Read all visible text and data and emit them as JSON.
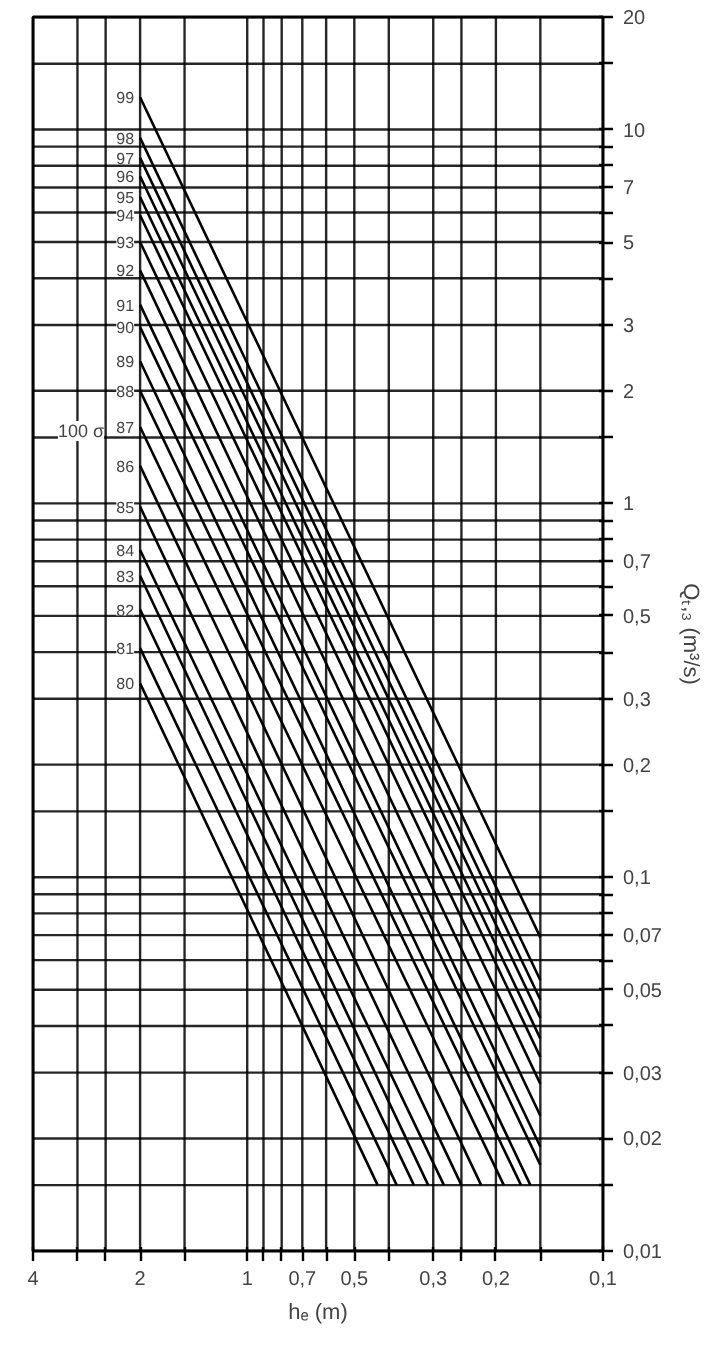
{
  "chart_data": {
    "type": "line",
    "xlabel": "hₑ (m)",
    "ylabel": "Qₜ,₃ (m³/s)",
    "log": "xy",
    "grid": true,
    "xlim": [
      4,
      0.1
    ],
    "ylim": [
      0.01,
      20
    ],
    "xticks": [
      {
        "value": 4,
        "label": "4"
      },
      {
        "value": 3,
        "label": null
      },
      {
        "value": 2.5,
        "label": null
      },
      {
        "value": 2,
        "label": "2"
      },
      {
        "value": 1.5,
        "label": null
      },
      {
        "value": 1,
        "label": "1"
      },
      {
        "value": 0.9,
        "label": null
      },
      {
        "value": 0.8,
        "label": null
      },
      {
        "value": 0.7,
        "label": "0,7"
      },
      {
        "value": 0.6,
        "label": null
      },
      {
        "value": 0.5,
        "label": "0,5"
      },
      {
        "value": 0.4,
        "label": null
      },
      {
        "value": 0.3,
        "label": "0,3"
      },
      {
        "value": 0.25,
        "label": null
      },
      {
        "value": 0.2,
        "label": "0,2"
      },
      {
        "value": 0.15,
        "label": null
      },
      {
        "value": 0.1,
        "label": "0,1"
      }
    ],
    "yticks": [
      {
        "value": 0.01,
        "label": "0,01"
      },
      {
        "value": 0.015,
        "label": null
      },
      {
        "value": 0.02,
        "label": "0,02"
      },
      {
        "value": 0.03,
        "label": "0,03"
      },
      {
        "value": 0.04,
        "label": null
      },
      {
        "value": 0.05,
        "label": "0,05"
      },
      {
        "value": 0.06,
        "label": null
      },
      {
        "value": 0.07,
        "label": "0,07"
      },
      {
        "value": 0.08,
        "label": null
      },
      {
        "value": 0.09,
        "label": null
      },
      {
        "value": 0.1,
        "label": "0,1"
      },
      {
        "value": 0.15,
        "label": null
      },
      {
        "value": 0.2,
        "label": "0,2"
      },
      {
        "value": 0.3,
        "label": "0,3"
      },
      {
        "value": 0.4,
        "label": null
      },
      {
        "value": 0.5,
        "label": "0,5"
      },
      {
        "value": 0.6,
        "label": null
      },
      {
        "value": 0.7,
        "label": "0,7"
      },
      {
        "value": 0.8,
        "label": null
      },
      {
        "value": 0.9,
        "label": null
      },
      {
        "value": 1,
        "label": "1"
      },
      {
        "value": 1.5,
        "label": null
      },
      {
        "value": 2,
        "label": "2"
      },
      {
        "value": 3,
        "label": "3"
      },
      {
        "value": 4,
        "label": null
      },
      {
        "value": 5,
        "label": "5"
      },
      {
        "value": 6,
        "label": null
      },
      {
        "value": 7,
        "label": "7"
      },
      {
        "value": 8,
        "label": null
      },
      {
        "value": 9,
        "label": null
      },
      {
        "value": 10,
        "label": "10"
      },
      {
        "value": 15,
        "label": null
      },
      {
        "value": 20,
        "label": "20"
      }
    ],
    "annotations": [
      "100 σ"
    ],
    "series": [
      {
        "name": "80",
        "color": "#000000",
        "x": [
          2,
          0.43
        ],
        "values": [
          0.33,
          0.015
        ]
      },
      {
        "name": "81",
        "color": "#000000",
        "x": [
          2,
          0.38
        ],
        "values": [
          0.41,
          0.015
        ]
      },
      {
        "name": "82",
        "color": "#000000",
        "x": [
          2,
          0.34
        ],
        "values": [
          0.52,
          0.015
        ]
      },
      {
        "name": "83",
        "color": "#000000",
        "x": [
          2,
          0.31
        ],
        "values": [
          0.64,
          0.015
        ]
      },
      {
        "name": "84",
        "color": "#000000",
        "x": [
          2,
          0.28
        ],
        "values": [
          0.75,
          0.015
        ]
      },
      {
        "name": "85",
        "color": "#000000",
        "x": [
          2,
          0.25
        ],
        "values": [
          0.98,
          0.015
        ]
      },
      {
        "name": "86",
        "color": "#000000",
        "x": [
          2,
          0.22
        ],
        "values": [
          1.26,
          0.015
        ]
      },
      {
        "name": "87",
        "color": "#000000",
        "x": [
          2,
          0.19
        ],
        "values": [
          1.6,
          0.015
        ]
      },
      {
        "name": "88",
        "color": "#000000",
        "x": [
          2,
          0.17
        ],
        "values": [
          2.0,
          0.015
        ]
      },
      {
        "name": "89",
        "color": "#000000",
        "x": [
          2,
          0.16
        ],
        "values": [
          2.4,
          0.015
        ]
      },
      {
        "name": "90",
        "color": "#000000",
        "x": [
          2,
          0.15
        ],
        "values": [
          2.96,
          0.017
        ]
      },
      {
        "name": "91",
        "color": "#000000",
        "x": [
          2,
          0.15
        ],
        "values": [
          3.4,
          0.019
        ]
      },
      {
        "name": "92",
        "color": "#000000",
        "x": [
          2,
          0.15
        ],
        "values": [
          4.2,
          0.023
        ]
      },
      {
        "name": "93",
        "color": "#000000",
        "x": [
          2,
          0.15
        ],
        "values": [
          5.0,
          0.028
        ]
      },
      {
        "name": "94",
        "color": "#000000",
        "x": [
          2,
          0.15
        ],
        "values": [
          5.9,
          0.033
        ]
      },
      {
        "name": "95",
        "color": "#000000",
        "x": [
          2,
          0.15
        ],
        "values": [
          6.6,
          0.037
        ]
      },
      {
        "name": "96",
        "color": "#000000",
        "x": [
          2,
          0.15
        ],
        "values": [
          7.5,
          0.042
        ]
      },
      {
        "name": "97",
        "color": "#000000",
        "x": [
          2,
          0.15
        ],
        "values": [
          8.4,
          0.047
        ]
      },
      {
        "name": "98",
        "color": "#000000",
        "x": [
          2,
          0.15
        ],
        "values": [
          9.5,
          0.053
        ]
      },
      {
        "name": "99",
        "color": "#000000",
        "x": [
          2,
          0.15
        ],
        "values": [
          12.2,
          0.069
        ]
      }
    ]
  }
}
